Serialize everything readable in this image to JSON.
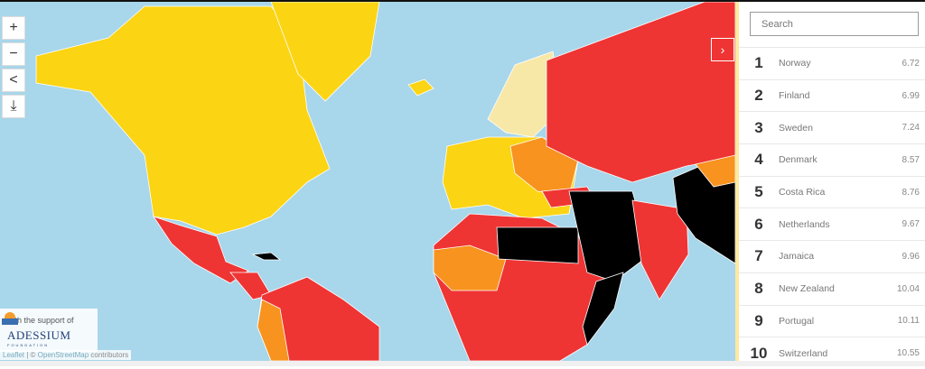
{
  "map": {
    "colors": {
      "ocean": "#a8d6ea",
      "good": "#f8e8a8",
      "satisfactory": "#fbd414",
      "problematic": "#f7931e",
      "difficult": "#ef3434",
      "very_serious": "#000000"
    },
    "controls": [
      {
        "icon": "plus-icon",
        "glyph": "+"
      },
      {
        "icon": "minus-icon",
        "glyph": "−"
      },
      {
        "icon": "share-icon",
        "glyph": "<"
      },
      {
        "icon": "download-icon",
        "glyph": "⤓"
      }
    ],
    "expand_glyph": "›",
    "support_text": "with the support of",
    "logo_text": "ADESSIUM",
    "logo_sub": "FOUNDATION",
    "attribution": {
      "leaflet": "Leaflet",
      "sep": " | © ",
      "osm": "OpenStreetMap",
      "contributors": " contributors"
    }
  },
  "panel": {
    "search_placeholder": "Search",
    "rows": [
      {
        "rank": "1",
        "country": "Norway",
        "score": "6.72"
      },
      {
        "rank": "2",
        "country": "Finland",
        "score": "6.99"
      },
      {
        "rank": "3",
        "country": "Sweden",
        "score": "7.24"
      },
      {
        "rank": "4",
        "country": "Denmark",
        "score": "8.57"
      },
      {
        "rank": "5",
        "country": "Costa Rica",
        "score": "8.76"
      },
      {
        "rank": "6",
        "country": "Netherlands",
        "score": "9.67"
      },
      {
        "rank": "7",
        "country": "Jamaica",
        "score": "9.96"
      },
      {
        "rank": "8",
        "country": "New Zealand",
        "score": "10.04"
      },
      {
        "rank": "9",
        "country": "Portugal",
        "score": "10.11"
      },
      {
        "rank": "10",
        "country": "Switzerland",
        "score": "10.55"
      }
    ]
  }
}
